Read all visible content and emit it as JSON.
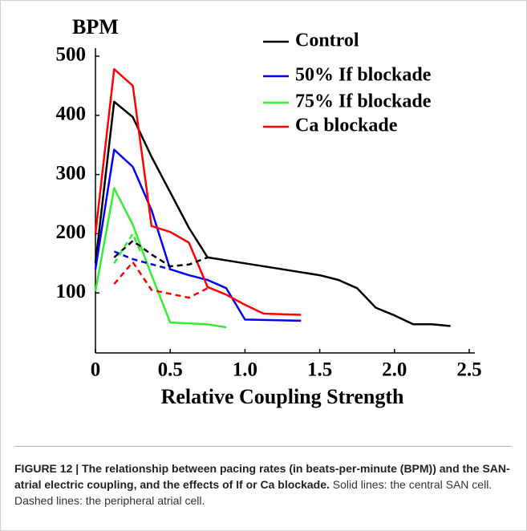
{
  "chart_data": {
    "type": "line",
    "y_label": "BPM",
    "x_label": "Relative Coupling Strength",
    "xlim": [
      0,
      2.5
    ],
    "ylim": [
      0,
      500
    ],
    "xticks": [
      0,
      0.5,
      {
        "value": 1,
        "label": "1.0"
      },
      1.5,
      {
        "value": 2,
        "label": "2.0"
      },
      2.5
    ],
    "yticks": [
      100,
      200,
      300,
      400,
      500
    ],
    "series": [
      {
        "name": "Control",
        "color": "#000000",
        "dashed": false,
        "x": [
          0,
          0.125,
          0.25,
          0.375,
          0.5,
          0.625,
          0.75,
          1.0,
          1.25,
          1.5,
          1.625,
          1.75,
          1.875,
          2.0,
          2.125,
          2.25,
          2.375
        ],
        "values": [
          150,
          423,
          397,
          330,
          270,
          210,
          160,
          150,
          140,
          130,
          122,
          108,
          75,
          62,
          47,
          47,
          44
        ]
      },
      {
        "name": "50% If blockade",
        "color": "#0000ff",
        "dashed": false,
        "x": [
          0,
          0.125,
          0.25,
          0.375,
          0.5,
          0.625,
          0.75,
          0.875,
          1.0,
          1.375
        ],
        "values": [
          140,
          342,
          313,
          240,
          140,
          130,
          122,
          108,
          55,
          53
        ]
      },
      {
        "name": "75% If blockade",
        "color": "#33ee33",
        "dashed": false,
        "x": [
          0,
          0.125,
          0.25,
          0.375,
          0.5,
          0.75,
          0.875
        ],
        "values": [
          103,
          277,
          215,
          130,
          50,
          47,
          42
        ]
      },
      {
        "name": "Ca blockade",
        "color": "#ff0000",
        "dashed": false,
        "x": [
          0,
          0.125,
          0.25,
          0.375,
          0.5,
          0.625,
          0.75,
          0.875,
          1.0,
          1.125,
          1.375
        ],
        "values": [
          200,
          478,
          450,
          213,
          203,
          185,
          110,
          97,
          80,
          65,
          63
        ]
      },
      {
        "color": "#000000",
        "dashed": true,
        "x": [
          0.125,
          0.25,
          0.375,
          0.5,
          0.625,
          0.75
        ],
        "values": [
          160,
          188,
          165,
          145,
          148,
          160
        ]
      },
      {
        "color": "#0000ff",
        "dashed": true,
        "x": [
          0.125,
          0.25,
          0.5
        ],
        "values": [
          170,
          157,
          140
        ]
      },
      {
        "color": "#33ee33",
        "dashed": true,
        "x": [
          0.125,
          0.25,
          0.3
        ],
        "values": [
          150,
          200,
          170
        ]
      },
      {
        "color": "#ff0000",
        "dashed": true,
        "x": [
          0.125,
          0.25,
          0.375,
          0.625,
          0.75
        ],
        "values": [
          115,
          152,
          105,
          92,
          108
        ]
      }
    ]
  },
  "caption": {
    "label": "FIGURE 12 | The relationship between pacing rates (in beats-per-minute (BPM)) and the SAN-atrial electric coupling, and the effects of If or Ca blockade.",
    "text": "Solid lines: the central SAN cell. Dashed lines: the peripheral atrial cell."
  }
}
